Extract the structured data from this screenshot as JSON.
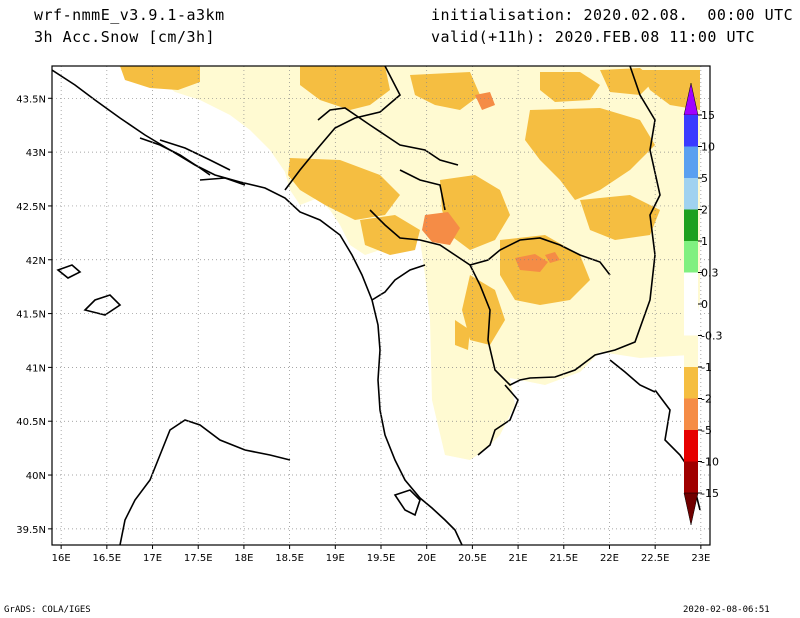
{
  "header": {
    "model": "wrf-nmmE_v3.9.1-a3km",
    "field": "3h Acc.Snow [cm/3h]",
    "init": "initialisation: 2020.02.08.  00:00 UTC",
    "valid": "valid(+11h): 2020.FEB.08 11:00 UTC"
  },
  "footer": {
    "left": "GrADS: COLA/IGES",
    "right": "2020-02-08-06:51"
  },
  "map": {
    "lon_labels": [
      "16E",
      "16.5E",
      "17E",
      "17.5E",
      "18E",
      "18.5E",
      "19E",
      "19.5E",
      "20E",
      "20.5E",
      "21E",
      "21.5E",
      "22E",
      "22.5E",
      "23E"
    ],
    "lat_labels": [
      "43.5N",
      "43N",
      "42.5N",
      "42N",
      "41.5N",
      "41N",
      "40.5N",
      "40N",
      "39.5N"
    ],
    "lon_range": [
      15.9,
      23.1
    ],
    "lat_range": [
      39.35,
      43.8
    ]
  },
  "legend": {
    "labels": [
      "15",
      "10",
      "5",
      "2",
      "1",
      "0.3",
      "0",
      "-0.3",
      "-1",
      "-2",
      "-5",
      "-10",
      "-15"
    ],
    "colors": [
      "#a000ff",
      "#3a3aff",
      "#5aa0f0",
      "#a0d2f0",
      "#1ea01e",
      "#80f080",
      "#ffffff",
      "#ffffff",
      "#fffad2",
      "#f5be41",
      "#f58c46",
      "#e60000",
      "#a00000",
      "#700000"
    ]
  }
}
